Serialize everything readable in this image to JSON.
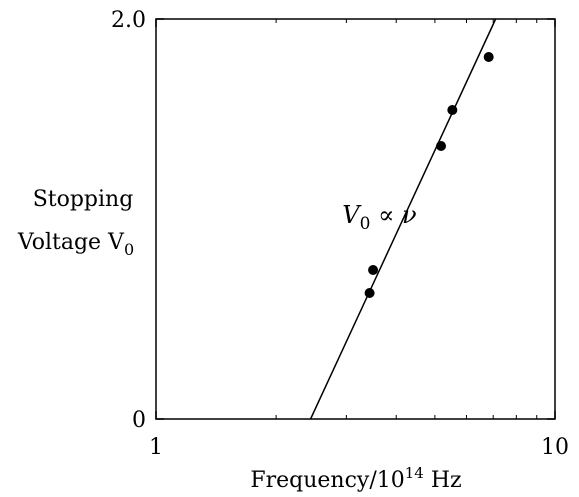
{
  "chart_data": {
    "type": "scatter",
    "title": "",
    "xlabel": "Frequency/10",
    "xlabel_sup": "14",
    "xlabel_unit": " Hz",
    "ylabel_line1": "Stopping",
    "ylabel_line2": "Voltage V",
    "ylabel_sub": "0",
    "x_ticks": [
      {
        "value": 1,
        "label": "1"
      },
      {
        "value": 10,
        "label": "10"
      }
    ],
    "y_ticks": [
      {
        "value": 0,
        "label": "0"
      },
      {
        "value": 2.0,
        "label": "2.0"
      }
    ],
    "xlim": [
      1,
      10
    ],
    "ylim": [
      0,
      2.0
    ],
    "grid": false,
    "series": [
      {
        "points": [
          {
            "x": 3.43,
            "y": 0.63
          },
          {
            "x": 3.5,
            "y": 0.745
          },
          {
            "x": 5.18,
            "y": 1.365
          },
          {
            "x": 5.53,
            "y": 1.545
          },
          {
            "x": 6.82,
            "y": 1.81
          }
        ]
      }
    ],
    "fit_line": {
      "points": [
        {
          "x": 2.44,
          "y": 0.0
        },
        {
          "x": 7.1,
          "y": 2.0
        }
      ]
    },
    "annotation": {
      "text_main": "V",
      "text_sub": "0",
      "text_rest": " ∝ ν",
      "x": 2.93,
      "y": 0.98
    },
    "colors": {
      "axis": "#000000",
      "marker": "#000000",
      "line": "#000000"
    }
  }
}
